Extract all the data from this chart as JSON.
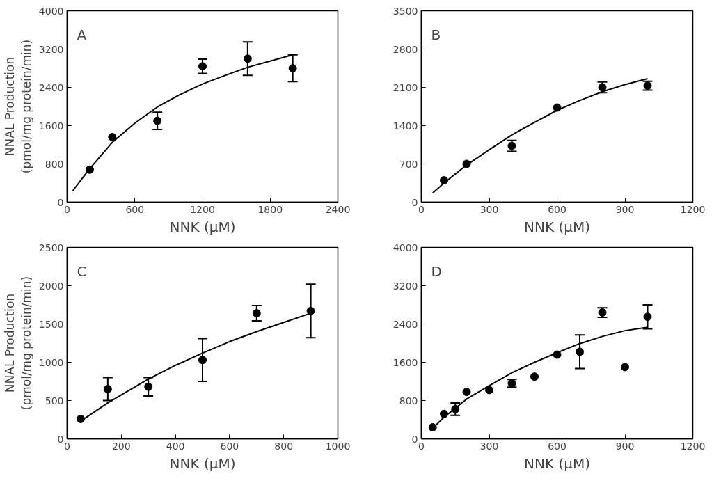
{
  "chart_data": [
    {
      "type": "scatter",
      "ylabel": "NNAL Production\n(pmol/mg protein/min)",
      "xlabel": "NNK (μM)",
      "annotations": [
        "A"
      ],
      "xlim": [
        0,
        2400
      ],
      "xticks": [
        0,
        600,
        1200,
        1800,
        2400
      ],
      "ylim": [
        0,
        4000
      ],
      "yticks": [
        0,
        800,
        1600,
        2400,
        3200,
        4000
      ],
      "grid": false,
      "series": [
        {
          "marker": "circle",
          "color": "#000000",
          "x": [
            200,
            400,
            800,
            1200,
            1600,
            2000
          ],
          "values": [
            680,
            1360,
            1700,
            2840,
            3000,
            2800
          ],
          "errors": [
            null,
            null,
            180,
            150,
            350,
            280
          ]
        },
        {
          "type": "line",
          "color": "#000000",
          "x": [
            50,
            200,
            400,
            600,
            800,
            1000,
            1200,
            1400,
            1600,
            1800,
            2000
          ],
          "values": [
            240,
            700,
            1250,
            1650,
            1990,
            2250,
            2470,
            2650,
            2820,
            2950,
            3080
          ]
        }
      ]
    },
    {
      "type": "scatter",
      "xlabel": "NNK (μM)",
      "annotations": [
        "B"
      ],
      "xlim": [
        0,
        1200
      ],
      "xticks": [
        0,
        300,
        600,
        900,
        1200
      ],
      "ylim": [
        0,
        3500
      ],
      "yticks": [
        0,
        700,
        1400,
        2100,
        2800,
        3500
      ],
      "grid": false,
      "series": [
        {
          "marker": "circle",
          "color": "#000000",
          "x": [
            100,
            200,
            400,
            600,
            800,
            1000
          ],
          "values": [
            400,
            700,
            1030,
            1730,
            2100,
            2130
          ],
          "errors": [
            null,
            null,
            100,
            null,
            100,
            80
          ]
        },
        {
          "type": "line",
          "color": "#000000",
          "x": [
            50,
            100,
            200,
            300,
            400,
            500,
            600,
            700,
            800,
            900,
            1000
          ],
          "values": [
            170,
            350,
            680,
            960,
            1230,
            1460,
            1680,
            1860,
            2020,
            2150,
            2260
          ]
        }
      ]
    },
    {
      "type": "scatter",
      "ylabel": "NNAL Production\n(pmol/mg protein/min)",
      "xlabel": "NNK (μM)",
      "annotations": [
        "C"
      ],
      "xlim": [
        0,
        1000
      ],
      "xticks": [
        0,
        200,
        400,
        600,
        800,
        1000
      ],
      "ylim": [
        0,
        2500
      ],
      "yticks": [
        0,
        500,
        1000,
        1500,
        2000,
        2500
      ],
      "grid": false,
      "series": [
        {
          "marker": "circle",
          "color": "#000000",
          "x": [
            50,
            150,
            300,
            500,
            700,
            900
          ],
          "values": [
            260,
            650,
            680,
            1030,
            1640,
            1670
          ],
          "errors": [
            null,
            150,
            120,
            280,
            100,
            350
          ]
        },
        {
          "type": "line",
          "color": "#000000",
          "x": [
            50,
            150,
            300,
            400,
            500,
            600,
            700,
            800,
            900
          ],
          "values": [
            230,
            470,
            780,
            960,
            1120,
            1270,
            1400,
            1520,
            1640
          ]
        }
      ]
    },
    {
      "type": "scatter",
      "xlabel": "NNK (μM)",
      "annotations": [
        "D"
      ],
      "xlim": [
        0,
        1200
      ],
      "xticks": [
        0,
        300,
        600,
        900,
        1200
      ],
      "ylim": [
        0,
        4000
      ],
      "yticks": [
        0,
        800,
        1600,
        2400,
        3200,
        4000
      ],
      "grid": false,
      "series": [
        {
          "marker": "circle",
          "color": "#000000",
          "x": [
            50,
            100,
            150,
            200,
            300,
            400,
            500,
            600,
            700,
            800,
            900,
            1000
          ],
          "values": [
            240,
            520,
            620,
            980,
            1020,
            1160,
            1300,
            1760,
            1820,
            2640,
            1500,
            2550
          ],
          "errors": [
            null,
            null,
            130,
            null,
            null,
            80,
            null,
            null,
            350,
            100,
            null,
            250
          ]
        },
        {
          "type": "line",
          "color": "#000000",
          "x": [
            50,
            100,
            200,
            300,
            400,
            500,
            600,
            700,
            800,
            900,
            1000
          ],
          "values": [
            220,
            450,
            830,
            1110,
            1380,
            1600,
            1800,
            1990,
            2140,
            2260,
            2330
          ]
        }
      ]
    }
  ]
}
